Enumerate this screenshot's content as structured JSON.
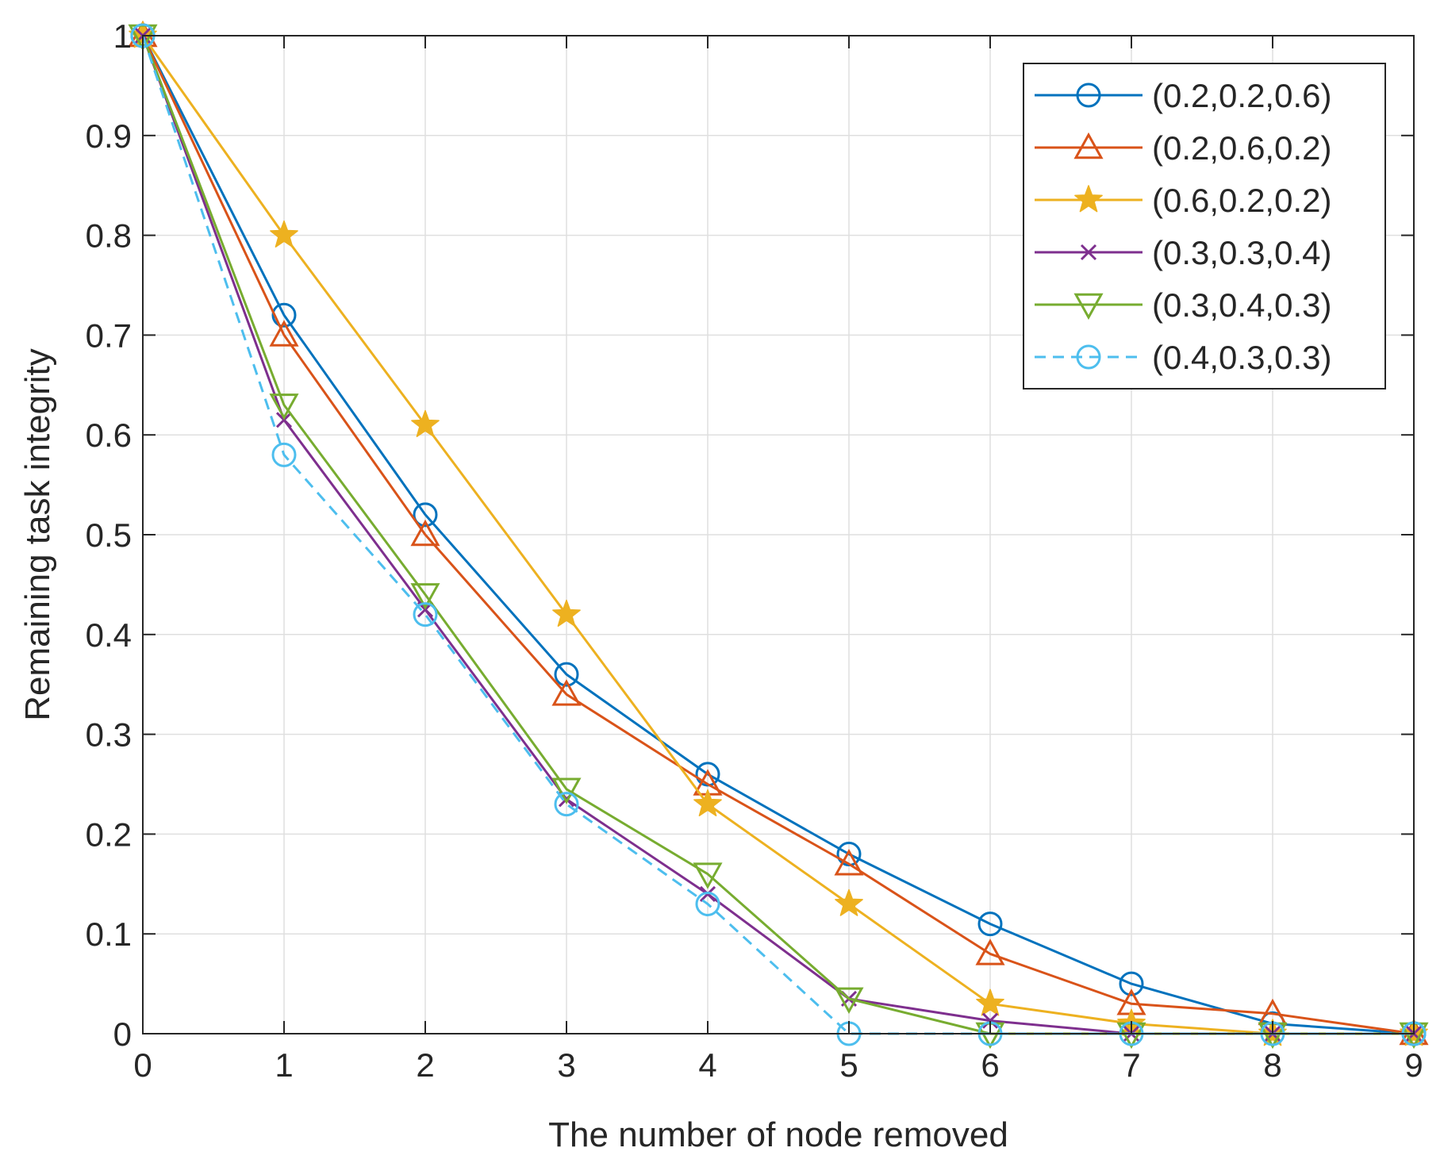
{
  "chart_data": {
    "type": "line",
    "title": "",
    "xlabel": "The number of node removed",
    "ylabel": "Remaining task integrity",
    "xlim": [
      0,
      9
    ],
    "ylim": [
      0,
      1
    ],
    "x": [
      0,
      1,
      2,
      3,
      4,
      5,
      6,
      7,
      8,
      9
    ],
    "xticks": [
      "0",
      "1",
      "2",
      "3",
      "4",
      "5",
      "6",
      "7",
      "8",
      "9"
    ],
    "yticks": [
      "0",
      "0.1",
      "0.2",
      "0.3",
      "0.4",
      "0.5",
      "0.6",
      "0.7",
      "0.8",
      "0.9",
      "1"
    ],
    "grid": true,
    "legend_position": "top-right",
    "series": [
      {
        "name": "(0.2,0.2,0.6)",
        "color": "#0072BD",
        "marker": "circle",
        "dash": "solid",
        "values": [
          1,
          0.72,
          0.52,
          0.36,
          0.26,
          0.18,
          0.11,
          0.05,
          0.01,
          0
        ]
      },
      {
        "name": "(0.2,0.6,0.2)",
        "color": "#D95319",
        "marker": "triangle-up",
        "dash": "solid",
        "values": [
          1,
          0.7,
          0.5,
          0.34,
          0.25,
          0.17,
          0.08,
          0.03,
          0.02,
          0
        ]
      },
      {
        "name": "(0.6,0.2,0.2)",
        "color": "#EDB120",
        "marker": "star",
        "dash": "solid",
        "values": [
          1,
          0.8,
          0.61,
          0.42,
          0.23,
          0.13,
          0.03,
          0.01,
          0,
          0
        ]
      },
      {
        "name": "(0.3,0.3,0.4)",
        "color": "#7E2F8E",
        "marker": "x",
        "dash": "solid",
        "values": [
          1,
          0.615,
          0.425,
          0.235,
          0.14,
          0.035,
          0.013,
          0,
          0,
          0
        ]
      },
      {
        "name": "(0.3,0.4,0.3)",
        "color": "#77AC30",
        "marker": "triangle-down",
        "dash": "solid",
        "values": [
          1,
          0.63,
          0.44,
          0.245,
          0.16,
          0.035,
          0,
          0,
          0,
          0
        ]
      },
      {
        "name": "(0.4,0.3,0.3)",
        "color": "#4DBEEE",
        "marker": "circle",
        "dash": "dashed",
        "values": [
          1,
          0.58,
          0.42,
          0.23,
          0.13,
          0,
          0,
          0,
          0,
          0
        ]
      }
    ]
  }
}
